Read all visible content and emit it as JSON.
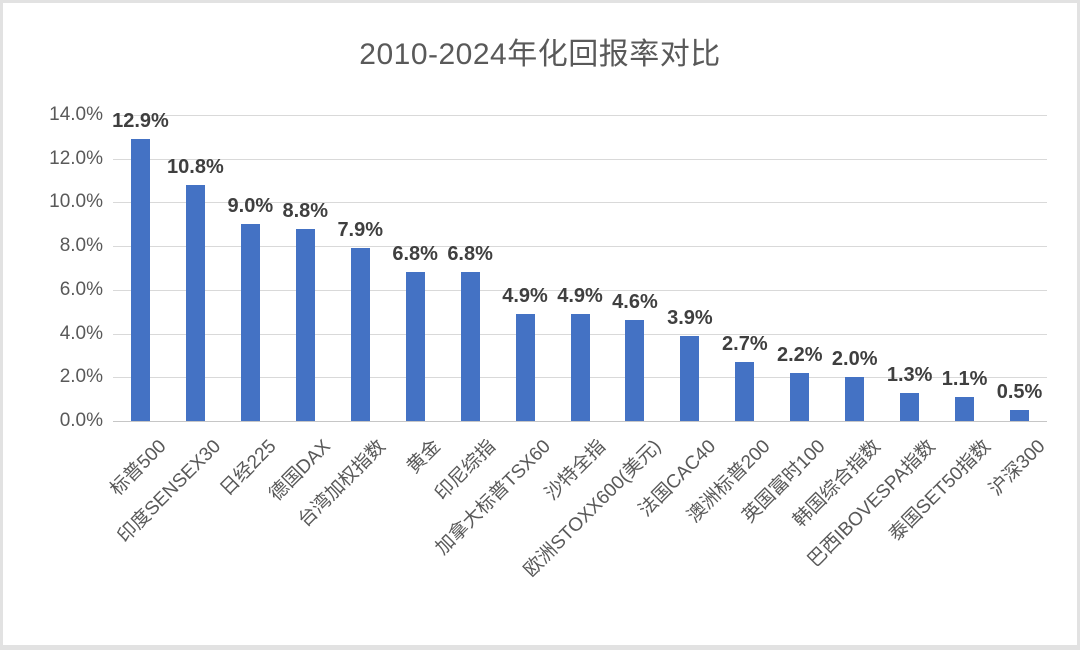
{
  "chart_data": {
    "type": "bar",
    "title": "2010-2024年化回报率对比",
    "categories": [
      "标普500",
      "印度SENSEX30",
      "日经225",
      "德国DAX",
      "台湾加权指数",
      "黄金",
      "印尼综指",
      "加拿大标普TSX60",
      "沙特全指",
      "欧洲STOXX600(美元)",
      "法国CAC40",
      "澳洲标普200",
      "英国富时100",
      "韩国综合指数",
      "巴西IBOVESPA指数",
      "泰国SET50指数",
      "沪深300"
    ],
    "values": [
      12.9,
      10.8,
      9.0,
      8.8,
      7.9,
      6.8,
      6.8,
      4.9,
      4.9,
      4.6,
      3.9,
      2.7,
      2.2,
      2.0,
      1.3,
      1.1,
      0.5
    ],
    "value_labels": [
      "12.9%",
      "10.8%",
      "9.0%",
      "8.8%",
      "7.9%",
      "6.8%",
      "6.8%",
      "4.9%",
      "4.9%",
      "4.6%",
      "3.9%",
      "2.7%",
      "2.2%",
      "2.0%",
      "1.3%",
      "1.1%",
      "0.5%"
    ],
    "y_ticks": [
      "14.0%",
      "12.0%",
      "10.0%",
      "8.0%",
      "6.0%",
      "4.0%",
      "2.0%",
      "0.0%"
    ],
    "ylim": [
      0,
      14
    ],
    "y_tick_step": 2,
    "xlabel": "",
    "ylabel": "",
    "grid": true,
    "legend_position": "none",
    "x_label_rotation_deg": 45,
    "colors": {
      "bar": "#4472C4",
      "gridline": "#d9d9d9",
      "axis_line": "#c6c6c6",
      "title_text": "#595959",
      "tick_text": "#595959",
      "value_label_text": "#3f3f3f",
      "background": "#ffffff",
      "frame_border": "#e2e2e2"
    }
  }
}
